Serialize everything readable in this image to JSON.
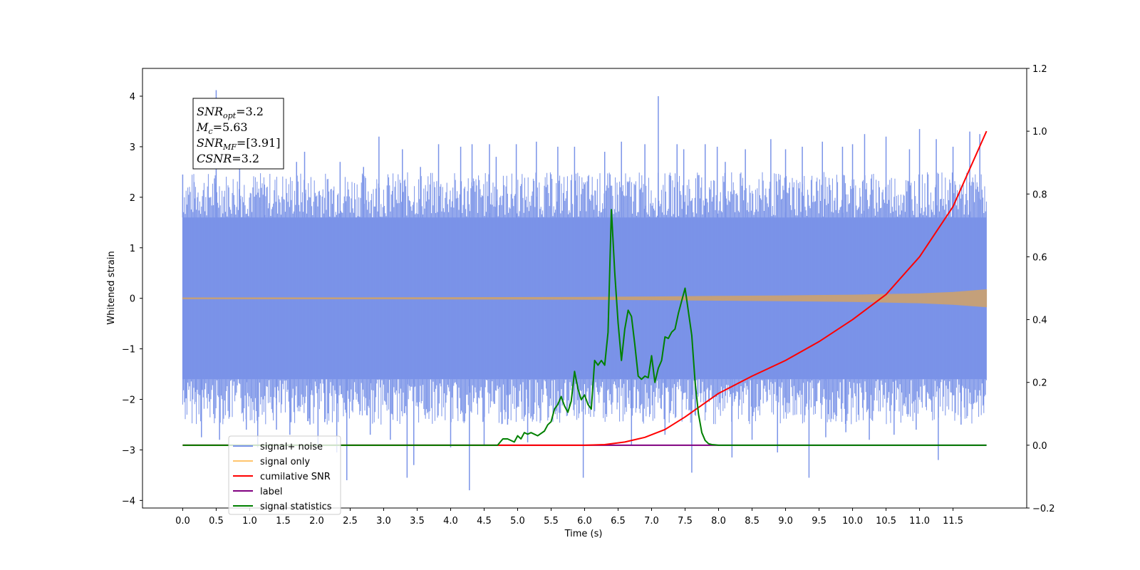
{
  "chart_data": {
    "type": "line",
    "xlabel": "Time (s)",
    "ylabel": "Whitened strain",
    "xlim": [
      -0.6,
      12.6
    ],
    "ylim_left": [
      -4.15,
      4.55
    ],
    "ylim_right": [
      -0.2,
      1.2
    ],
    "x_ticks": [
      "0.0",
      "0.5",
      "1.0",
      "1.5",
      "2.0",
      "2.5",
      "3.0",
      "3.5",
      "4.0",
      "4.5",
      "5.0",
      "5.5",
      "6.0",
      "6.5",
      "7.0",
      "7.5",
      "8.0",
      "8.5",
      "9.0",
      "9.5",
      "10.0",
      "10.5",
      "11.0",
      "11.5"
    ],
    "y_left_ticks": [
      "4",
      "3",
      "2",
      "1",
      "0",
      "−1",
      "−2",
      "−3",
      "−4"
    ],
    "y_right_ticks": [
      "1.2",
      "1.0",
      "0.8",
      "0.6",
      "0.4",
      "0.2",
      "0.0",
      "−0.2"
    ],
    "annotation": {
      "lines": [
        {
          "main": "SNR",
          "sub": "opt",
          "value": "=3.2"
        },
        {
          "main": "M",
          "sub": "c",
          "value": "=5.63"
        },
        {
          "main": "SNR",
          "sub": "MF",
          "value": "=[3.91]"
        },
        {
          "main": "CSNR",
          "sub": "",
          "value": "=3.2"
        }
      ]
    },
    "legend": {
      "placement": "lower-left",
      "entries": [
        {
          "label": "signal+ noise",
          "color": "#7a93e8"
        },
        {
          "label": "signal only",
          "color": "#ffc56e"
        },
        {
          "label": "cumilative SNR",
          "color": "#ff0000"
        },
        {
          "label": "label",
          "color": "#800080"
        },
        {
          "label": "signal statistics",
          "color": "#008000"
        }
      ]
    },
    "series": [
      {
        "name": "signal+ noise",
        "axis": "left",
        "color": "#7a93e8",
        "band_x": [
          0,
          12
        ],
        "band_y": [
          -1.6,
          1.6
        ],
        "spikes": [
          [
            0.0,
            2.45
          ],
          [
            0.05,
            -1.98
          ],
          [
            0.17,
            2.3
          ],
          [
            0.2,
            -2.05
          ],
          [
            0.28,
            -2.75
          ],
          [
            0.5,
            4.12
          ],
          [
            0.55,
            -2.8
          ],
          [
            0.85,
            2.6
          ],
          [
            0.95,
            -2.6
          ],
          [
            1.12,
            -2.95
          ],
          [
            1.22,
            2.25
          ],
          [
            1.4,
            -2.6
          ],
          [
            1.6,
            -2.7
          ],
          [
            1.7,
            2.7
          ],
          [
            1.82,
            2.9
          ],
          [
            1.9,
            -2.5
          ],
          [
            2.02,
            -2.95
          ],
          [
            2.12,
            -2.45
          ],
          [
            2.3,
            -3.05
          ],
          [
            2.35,
            2.7
          ],
          [
            2.45,
            -3.6
          ],
          [
            2.7,
            2.6
          ],
          [
            2.8,
            -2.7
          ],
          [
            2.93,
            3.2
          ],
          [
            3.1,
            -2.8
          ],
          [
            3.28,
            2.95
          ],
          [
            3.35,
            -3.55
          ],
          [
            3.45,
            -3.3
          ],
          [
            3.55,
            2.6
          ],
          [
            3.82,
            3.05
          ],
          [
            4.0,
            -2.95
          ],
          [
            4.15,
            3.0
          ],
          [
            4.28,
            -3.8
          ],
          [
            4.32,
            3.05
          ],
          [
            4.5,
            -2.9
          ],
          [
            4.58,
            3.05
          ],
          [
            4.68,
            2.8
          ],
          [
            4.85,
            -2.5
          ],
          [
            4.98,
            3.05
          ],
          [
            5.15,
            -2.85
          ],
          [
            5.28,
            3.1
          ],
          [
            5.6,
            3.0
          ],
          [
            5.85,
            3.0
          ],
          [
            5.98,
            -3.55
          ],
          [
            6.3,
            2.9
          ],
          [
            6.55,
            3.1
          ],
          [
            6.7,
            -2.9
          ],
          [
            6.9,
            3.05
          ],
          [
            7.1,
            4.0
          ],
          [
            7.2,
            -2.7
          ],
          [
            7.38,
            3.05
          ],
          [
            7.48,
            2.95
          ],
          [
            7.6,
            -3.45
          ],
          [
            7.8,
            3.05
          ],
          [
            7.98,
            3.0
          ],
          [
            8.1,
            2.7
          ],
          [
            8.2,
            -3.15
          ],
          [
            8.4,
            2.95
          ],
          [
            8.5,
            -2.8
          ],
          [
            8.78,
            3.15
          ],
          [
            8.88,
            -3.05
          ],
          [
            9.0,
            2.95
          ],
          [
            9.25,
            3.0
          ],
          [
            9.35,
            -3.55
          ],
          [
            9.55,
            3.1
          ],
          [
            9.6,
            -2.75
          ],
          [
            9.85,
            3.0
          ],
          [
            9.9,
            -2.65
          ],
          [
            10.0,
            3.05
          ],
          [
            10.18,
            3.25
          ],
          [
            10.25,
            -2.8
          ],
          [
            10.5,
            3.2
          ],
          [
            10.62,
            -2.7
          ],
          [
            10.85,
            2.95
          ],
          [
            10.95,
            -2.6
          ],
          [
            11.0,
            3.35
          ],
          [
            11.25,
            3.15
          ],
          [
            11.28,
            -3.2
          ],
          [
            11.5,
            3.0
          ],
          [
            11.62,
            -2.5
          ],
          [
            11.75,
            3.3
          ],
          [
            11.9,
            3.25
          ],
          [
            11.95,
            -2.1
          ]
        ]
      },
      {
        "name": "signal only",
        "axis": "left",
        "color": "#c4a07a",
        "x": [
          0,
          3,
          6,
          7,
          8,
          9,
          10,
          11,
          11.5,
          12
        ],
        "amplitude": [
          0.01,
          0.012,
          0.02,
          0.03,
          0.04,
          0.05,
          0.065,
          0.09,
          0.12,
          0.17
        ]
      },
      {
        "name": "cumilative SNR",
        "axis": "right",
        "color": "#ff0000",
        "x": [
          0,
          6,
          6.3,
          6.6,
          6.9,
          7.2,
          7.5,
          8.0,
          8.5,
          9.0,
          9.5,
          10.0,
          10.5,
          11.0,
          11.5,
          12.0
        ],
        "y": [
          0.0,
          0.0,
          0.002,
          0.01,
          0.025,
          0.05,
          0.09,
          0.165,
          0.22,
          0.27,
          0.33,
          0.4,
          0.48,
          0.6,
          0.76,
          1.0
        ]
      },
      {
        "name": "label",
        "axis": "right",
        "color": "#800080",
        "x": [
          0,
          12
        ],
        "y": [
          0.0,
          0.0
        ]
      },
      {
        "name": "signal statistics",
        "axis": "right",
        "color": "#008000",
        "x": [
          0,
          4.7,
          4.78,
          4.85,
          4.95,
          5.0,
          5.05,
          5.1,
          5.15,
          5.2,
          5.3,
          5.4,
          5.45,
          5.5,
          5.55,
          5.6,
          5.65,
          5.7,
          5.75,
          5.8,
          5.85,
          5.9,
          5.95,
          6.0,
          6.05,
          6.1,
          6.15,
          6.2,
          6.25,
          6.3,
          6.35,
          6.4,
          6.45,
          6.5,
          6.55,
          6.6,
          6.65,
          6.7,
          6.75,
          6.8,
          6.85,
          6.9,
          6.95,
          7.0,
          7.05,
          7.1,
          7.15,
          7.2,
          7.25,
          7.3,
          7.35,
          7.4,
          7.5,
          7.6,
          7.65,
          7.7,
          7.75,
          7.8,
          7.85,
          7.9,
          7.95,
          8.0,
          8.05,
          8.1,
          8.15,
          8.2,
          8.3,
          8.5,
          9.0,
          12.0
        ],
        "y": [
          0.0,
          0.0,
          0.02,
          0.02,
          0.01,
          0.03,
          0.02,
          0.04,
          0.035,
          0.04,
          0.03,
          0.045,
          0.065,
          0.075,
          0.115,
          0.13,
          0.155,
          0.125,
          0.105,
          0.14,
          0.235,
          0.18,
          0.145,
          0.16,
          0.13,
          0.115,
          0.27,
          0.255,
          0.27,
          0.255,
          0.36,
          0.75,
          0.55,
          0.39,
          0.27,
          0.37,
          0.43,
          0.41,
          0.32,
          0.22,
          0.21,
          0.22,
          0.215,
          0.285,
          0.2,
          0.245,
          0.27,
          0.345,
          0.34,
          0.36,
          0.37,
          0.42,
          0.5,
          0.35,
          0.2,
          0.1,
          0.04,
          0.015,
          0.005,
          0.002,
          0.001,
          0.0,
          0.0,
          0.0,
          0.0,
          0.0,
          0.0,
          0.0,
          0.0,
          0.0
        ]
      }
    ]
  }
}
